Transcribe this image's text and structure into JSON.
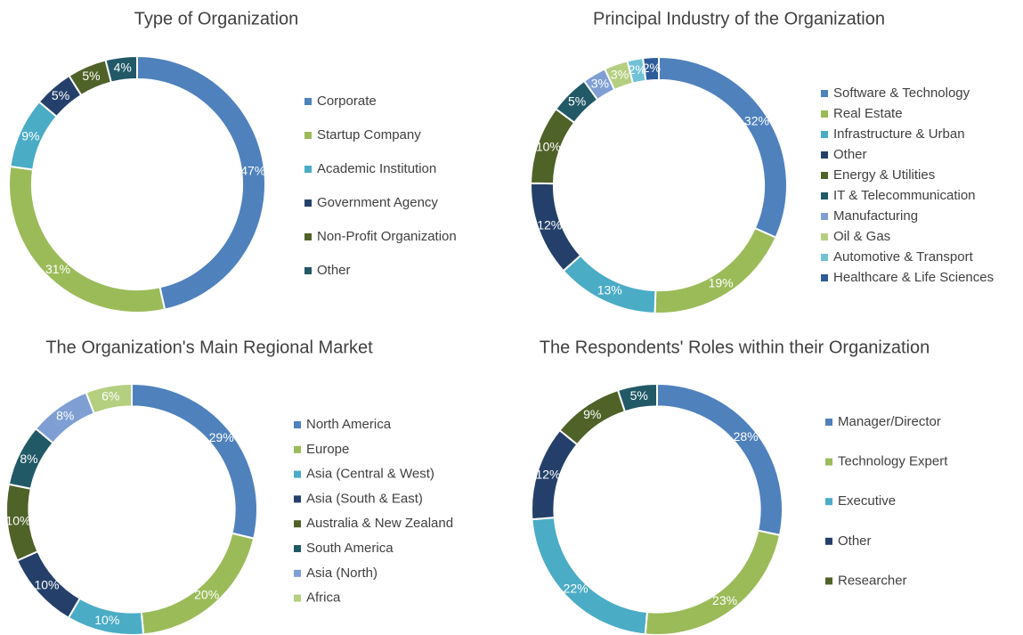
{
  "chart_data": [
    {
      "type": "donut",
      "title": "Type of Organization",
      "categories": [
        "Corporate",
        "Startup Company",
        "Academic Institution",
        "Government Agency",
        "Non-Profit Organization",
        "Other"
      ],
      "values": [
        47,
        31,
        9,
        5,
        5,
        4
      ],
      "value_labels": [
        "47%",
        "31%",
        "9%",
        "5%",
        "5%",
        "4%"
      ],
      "colors": [
        "#4f81bd",
        "#9bbb59",
        "#4bacc6",
        "#24406a",
        "#4f6228",
        "#215967"
      ]
    },
    {
      "type": "donut",
      "title": "Principal Industry of the Organization",
      "categories": [
        "Software & Technology",
        "Real Estate",
        "Infrastructure & Urban",
        "Other",
        "Energy & Utilities",
        "IT & Telecommunication",
        "Manufacturing",
        "Oil & Gas",
        "Automotive & Transport",
        "Healthcare & Life Sciences"
      ],
      "values": [
        32,
        19,
        13,
        12,
        10,
        5,
        3,
        3,
        2,
        2
      ],
      "value_labels": [
        "32%",
        "19%",
        "13%",
        "12%",
        "10%",
        "5%",
        "3%",
        "3%",
        "2%",
        "2%"
      ],
      "colors": [
        "#4f81bd",
        "#9bbb59",
        "#4bacc6",
        "#24406a",
        "#4f6228",
        "#215967",
        "#7f9fd4",
        "#b3cf7f",
        "#71c2d6",
        "#2e5c9a"
      ]
    },
    {
      "type": "donut",
      "title": "The Organization's Main Regional Market",
      "categories": [
        "North America",
        "Europe",
        "Asia (Central & West)",
        "Asia (South & East)",
        "Australia & New Zealand",
        "South America",
        "Asia (North)",
        "Africa"
      ],
      "values": [
        29,
        20,
        10,
        10,
        10,
        8,
        8,
        6
      ],
      "value_labels": [
        "29%",
        "20%",
        "10%",
        "10%",
        "10%",
        "8%",
        "8%",
        "6%"
      ],
      "colors": [
        "#4f81bd",
        "#9bbb59",
        "#4bacc6",
        "#24406a",
        "#4f6228",
        "#215967",
        "#7f9fd4",
        "#b3cf7f"
      ]
    },
    {
      "type": "donut",
      "title": "The Respondents' Roles within their Organization",
      "categories": [
        "Manager/Director",
        "Technology Expert",
        "Executive",
        "Other",
        "Researcher",
        null
      ],
      "values": [
        28,
        23,
        22,
        12,
        9,
        5
      ],
      "value_labels": [
        "28%",
        "23%",
        "22%",
        "12%",
        "9%",
        "5%"
      ],
      "colors": [
        "#4f81bd",
        "#9bbb59",
        "#4bacc6",
        "#24406a",
        "#4f6228",
        "#215967"
      ]
    }
  ]
}
